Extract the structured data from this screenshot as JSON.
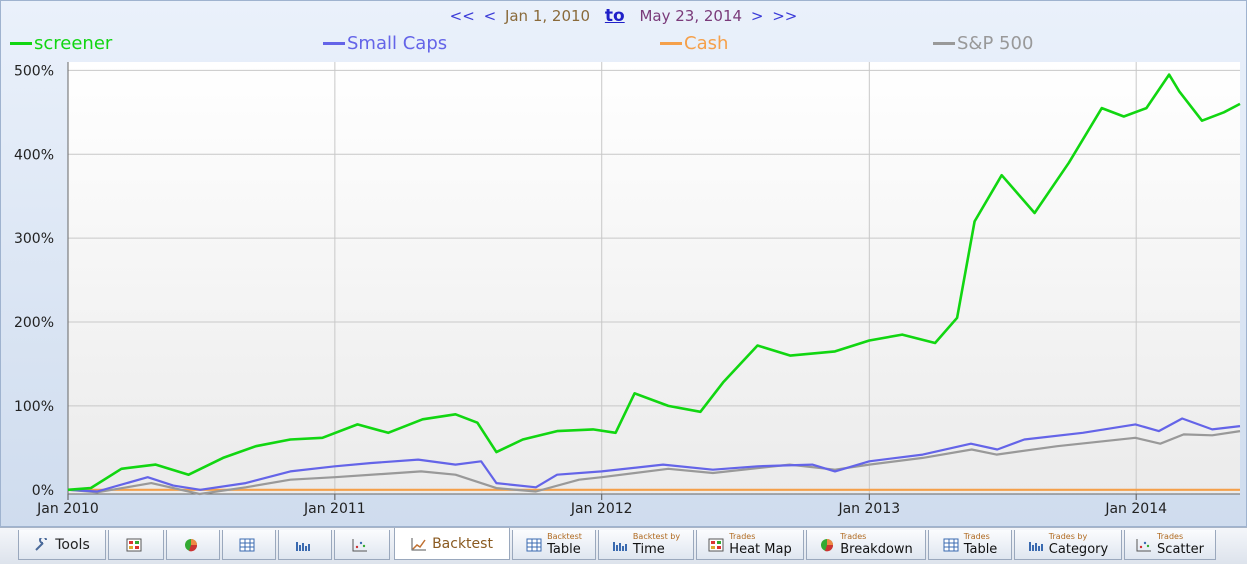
{
  "date_nav": {
    "prev_far": "<<",
    "prev": "<",
    "start": "Jan 1, 2010",
    "to": "to",
    "end": "May 23, 2014",
    "next": ">",
    "next_far": ">>"
  },
  "colors": {
    "screener": "#11d611",
    "small_caps": "#6464e8",
    "cash": "#f5a04a",
    "sp500": "#999999",
    "grid": "#c8c8c8"
  },
  "chart_data": {
    "type": "line",
    "title": "",
    "xlabel": "",
    "ylabel": "",
    "xlim": [
      "2010-01-01",
      "2014-05-23"
    ],
    "ylim": [
      -5,
      510
    ],
    "y_ticks": [
      0,
      100,
      200,
      300,
      400,
      500
    ],
    "y_tick_labels": [
      "0%",
      "100%",
      "200%",
      "300%",
      "400%",
      "500%"
    ],
    "x_tick_labels": [
      "Jan 2010",
      "Jan 2011",
      "Jan 2012",
      "Jan 2013",
      "Jan 2014"
    ],
    "x_ticks": [
      "2010-01-01",
      "2011-01-01",
      "2012-01-01",
      "2013-01-01",
      "2014-01-01"
    ],
    "grid": true,
    "legend_position": "top",
    "series": [
      {
        "name": "screener",
        "color": "#11d611",
        "x": [
          "2010-01-01",
          "2010-02-01",
          "2010-03-15",
          "2010-05-01",
          "2010-06-15",
          "2010-08-01",
          "2010-09-15",
          "2010-11-01",
          "2010-12-15",
          "2011-02-01",
          "2011-03-15",
          "2011-05-01",
          "2011-06-15",
          "2011-07-15",
          "2011-08-10",
          "2011-09-15",
          "2011-11-01",
          "2011-12-20",
          "2012-01-20",
          "2012-02-15",
          "2012-04-01",
          "2012-05-15",
          "2012-06-15",
          "2012-08-01",
          "2012-09-15",
          "2012-11-15",
          "2013-01-01",
          "2013-02-15",
          "2013-04-01",
          "2013-05-01",
          "2013-05-25",
          "2013-07-01",
          "2013-08-15",
          "2013-10-01",
          "2013-11-15",
          "2013-12-15",
          "2014-01-15",
          "2014-02-15",
          "2014-03-01",
          "2014-04-01",
          "2014-05-01",
          "2014-05-23"
        ],
        "values": [
          0,
          2,
          25,
          30,
          18,
          38,
          52,
          60,
          62,
          78,
          68,
          84,
          90,
          80,
          45,
          60,
          70,
          72,
          68,
          115,
          100,
          93,
          128,
          172,
          160,
          165,
          178,
          185,
          175,
          205,
          320,
          375,
          330,
          390,
          455,
          445,
          455,
          495,
          475,
          440,
          450,
          460
        ]
      },
      {
        "name": "Small Caps",
        "color": "#6464e8",
        "x": [
          "2010-01-01",
          "2010-02-10",
          "2010-04-20",
          "2010-05-25",
          "2010-07-01",
          "2010-09-01",
          "2010-11-01",
          "2011-01-01",
          "2011-02-20",
          "2011-04-25",
          "2011-06-15",
          "2011-07-20",
          "2011-08-10",
          "2011-10-03",
          "2011-11-01",
          "2012-01-01",
          "2012-03-25",
          "2012-06-01",
          "2012-08-01",
          "2012-10-15",
          "2012-11-15",
          "2013-01-01",
          "2013-03-15",
          "2013-05-20",
          "2013-06-25",
          "2013-08-01",
          "2013-10-20",
          "2013-12-31",
          "2014-02-01",
          "2014-03-05",
          "2014-04-15",
          "2014-05-23"
        ],
        "values": [
          0,
          -2,
          15,
          5,
          0,
          8,
          22,
          28,
          32,
          36,
          30,
          34,
          8,
          3,
          18,
          22,
          30,
          24,
          28,
          30,
          22,
          34,
          42,
          55,
          48,
          60,
          68,
          78,
          70,
          85,
          72,
          76
        ]
      },
      {
        "name": "Cash",
        "color": "#f5a04a",
        "x": [
          "2010-01-01",
          "2014-05-23"
        ],
        "values": [
          0,
          0
        ]
      },
      {
        "name": "S&P 500",
        "color": "#999999",
        "x": [
          "2010-01-01",
          "2010-02-10",
          "2010-04-25",
          "2010-06-30",
          "2010-09-01",
          "2010-11-01",
          "2011-01-01",
          "2011-04-29",
          "2011-06-15",
          "2011-08-10",
          "2011-10-03",
          "2011-12-01",
          "2012-01-01",
          "2012-04-01",
          "2012-06-01",
          "2012-09-14",
          "2012-11-15",
          "2013-01-01",
          "2013-03-15",
          "2013-05-21",
          "2013-06-24",
          "2013-09-15",
          "2013-12-31",
          "2014-02-03",
          "2014-03-07",
          "2014-04-15",
          "2014-05-23"
        ],
        "values": [
          0,
          -3,
          8,
          -5,
          3,
          12,
          15,
          22,
          18,
          2,
          -2,
          12,
          15,
          25,
          20,
          30,
          24,
          30,
          38,
          48,
          42,
          52,
          62,
          55,
          66,
          65,
          70
        ]
      }
    ]
  },
  "tabs": {
    "tools": "Tools",
    "backtest": "Backtest",
    "backtest_table_small": "Backtest",
    "backtest_table_big": "Table",
    "backtest_time_small": "Backtest by",
    "backtest_time_big": "Time",
    "heatmap_small": "Trades",
    "heatmap_big": "Heat Map",
    "breakdown_small": "Trades",
    "breakdown_big": "Breakdown",
    "trades_table_small": "Trades",
    "trades_table_big": "Table",
    "category_small": "Trades by",
    "category_big": "Category",
    "scatter_small": "Trades",
    "scatter_big": "Scatter"
  }
}
